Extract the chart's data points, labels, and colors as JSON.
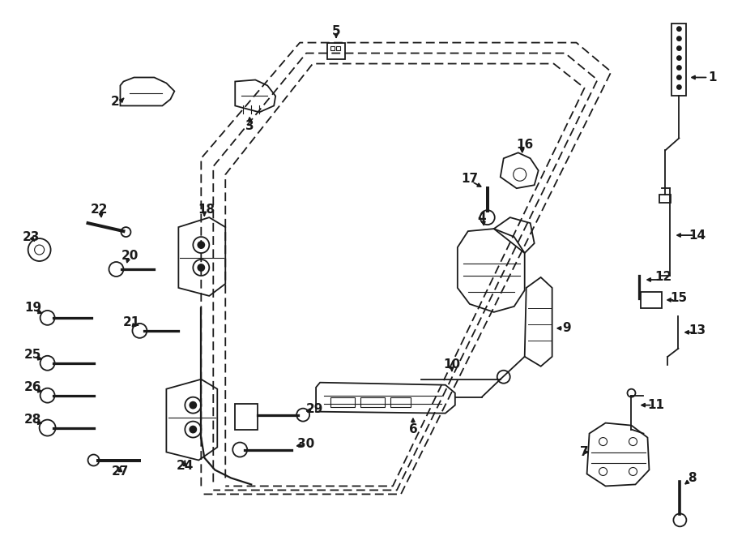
{
  "bg_color": "#ffffff",
  "line_color": "#1a1a1a",
  "fig_width": 9.0,
  "fig_height": 6.61,
  "dpi": 100,
  "font_size": 10,
  "font_size_large": 11
}
